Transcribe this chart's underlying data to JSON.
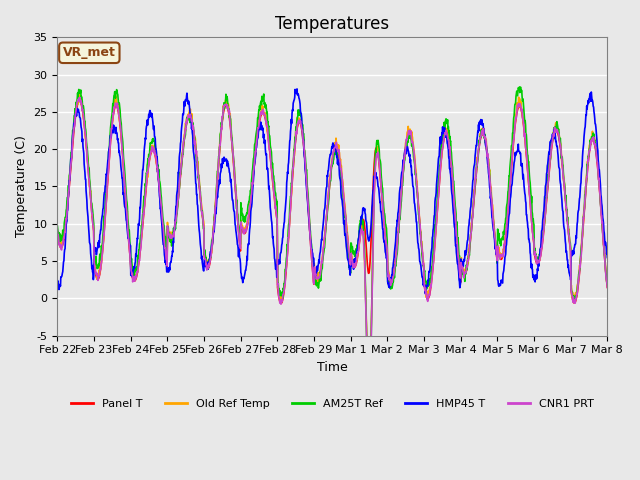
{
  "title": "Temperatures",
  "xlabel": "Time",
  "ylabel": "Temperature (C)",
  "ylim": [
    -5,
    35
  ],
  "plot_bg_color": "#e8e8e8",
  "grid_color": "white",
  "annotation_text": "VR_met",
  "annotation_bg": "#f5f5dc",
  "annotation_border": "#8B4513",
  "series_names": [
    "Panel T",
    "Old Ref Temp",
    "AM25T Ref",
    "HMP45 T",
    "CNR1 PRT"
  ],
  "series_colors": [
    "#ff0000",
    "#ffa500",
    "#00cc00",
    "#0000ff",
    "#cc44cc"
  ],
  "series_lw": [
    1.2,
    1.2,
    1.2,
    1.2,
    1.2
  ],
  "xtick_labels": [
    "Feb 22",
    "Feb 23",
    "Feb 24",
    "Feb 25",
    "Feb 26",
    "Feb 27",
    "Feb 28",
    "Feb 29",
    "Mar 1",
    "Mar 2",
    "Mar 3",
    "Mar 4",
    "Mar 5",
    "Mar 6",
    "Mar 7",
    "Mar 8"
  ],
  "ytick_labels": [
    -5,
    0,
    5,
    10,
    15,
    20,
    25,
    30,
    35
  ],
  "title_fontsize": 12,
  "label_fontsize": 9,
  "tick_fontsize": 8
}
